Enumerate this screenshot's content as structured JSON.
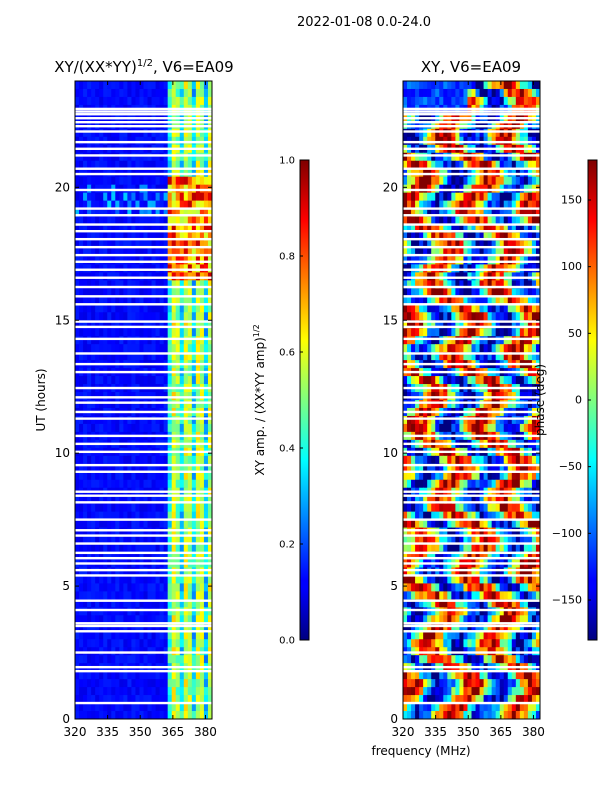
{
  "figure": {
    "suptitle": "2022-01-08 0.0-24.0",
    "xlabel": "frequency (MHz)"
  },
  "chart_data": [
    {
      "type": "heatmap",
      "title_main": "XY/(XX*YY)",
      "title_sup": "1/2",
      "title_tail": ", V6=EA09",
      "xlabel": "",
      "ylabel": "UT (hours)",
      "xlim": [
        320,
        383
      ],
      "ylim": [
        0,
        24
      ],
      "xticks": [
        320,
        335,
        350,
        365,
        380
      ],
      "yticks": [
        0,
        5,
        10,
        15,
        20
      ],
      "colorbar": {
        "label_main": "XY amp. / (XX*YY amp)",
        "label_sup": "1/2",
        "range": [
          0.0,
          1.0
        ],
        "ticks": [
          "0.0",
          "0.2",
          "0.4",
          "0.6",
          "0.8",
          "1.0"
        ],
        "tick_values": [
          0.0,
          0.2,
          0.4,
          0.6,
          0.8,
          1.0
        ],
        "colormap": "jet"
      },
      "flagged_hours": [
        0.6,
        1.8,
        1.95,
        2.5,
        3.3,
        3.5,
        3.6,
        4.1,
        4.45,
        5.4,
        5.6,
        5.85,
        6.05,
        6.25,
        6.6,
        6.9,
        7.1,
        7.5,
        8.15,
        8.4,
        8.55,
        9.3,
        9.55,
        10.05,
        10.35,
        10.65,
        11.3,
        11.55,
        11.9,
        12.1,
        12.45,
        13.05,
        13.35,
        13.75,
        14.3,
        14.75,
        14.95,
        15.6,
        15.9,
        16.25,
        16.6,
        16.9,
        17.2,
        17.45,
        17.75,
        18.05,
        18.35,
        18.6,
        18.95,
        19.2,
        19.9,
        20.5,
        20.7,
        21.2,
        21.45,
        21.7,
        22.1,
        22.3,
        22.45,
        22.6,
        22.75,
        22.85,
        22.95
      ]
    },
    {
      "type": "heatmap",
      "title_main": "XY, V6=EA09",
      "xlabel": "frequency (MHz)",
      "ylabel": "",
      "xlim": [
        320,
        383
      ],
      "ylim": [
        0,
        24
      ],
      "xticks": [
        320,
        335,
        350,
        365,
        380
      ],
      "yticks": [
        0,
        5,
        10,
        15,
        20
      ],
      "colorbar": {
        "label_main": "phase (deg)",
        "range": [
          -180,
          180
        ],
        "ticks": [
          "−150",
          "−100",
          "−50",
          "0",
          "50",
          "100",
          "150"
        ],
        "tick_values": [
          -150,
          -100,
          -50,
          0,
          50,
          100,
          150
        ],
        "colormap": "jet"
      },
      "flagged_hours": [
        0.6,
        1.8,
        1.95,
        2.5,
        3.3,
        3.5,
        3.6,
        4.1,
        4.45,
        5.4,
        5.6,
        5.85,
        6.05,
        6.25,
        6.6,
        6.9,
        7.1,
        7.5,
        8.15,
        8.4,
        8.55,
        9.3,
        9.55,
        10.05,
        10.35,
        10.65,
        11.3,
        11.55,
        11.9,
        12.1,
        12.45,
        13.05,
        13.35,
        13.75,
        14.3,
        14.75,
        14.95,
        15.6,
        15.9,
        16.25,
        16.6,
        16.9,
        17.2,
        17.45,
        17.75,
        18.05,
        18.35,
        18.6,
        18.95,
        19.2,
        19.9,
        20.5,
        20.7,
        21.2,
        21.45,
        21.7,
        22.1,
        22.3,
        22.45,
        22.6,
        22.75,
        22.85,
        22.95
      ]
    }
  ]
}
